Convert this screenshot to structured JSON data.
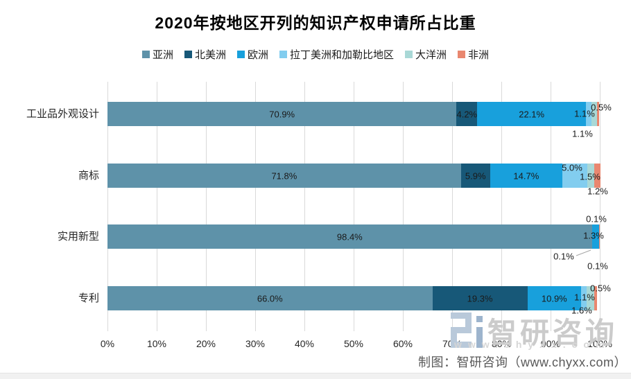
{
  "page": {
    "credit": "制图：智研咨询（www.chyxx.com）",
    "watermark": {
      "brand": "智研咨询",
      "url": "www.chyxx.com",
      "logo_icon": "zhiyan-2i-logo"
    }
  },
  "chart_data": {
    "type": "bar",
    "variant": "horizontal-stacked",
    "title": "2020年按地区开列的知识产权申请所占比重",
    "categories": [
      "工业品外观设计",
      "商标",
      "实用新型",
      "专利"
    ],
    "series": [
      {
        "key": "asia",
        "name": "亚洲",
        "color": "#5E92A9",
        "values": [
          70.9,
          71.8,
          98.4,
          66.0
        ]
      },
      {
        "key": "north-america",
        "name": "北美洲",
        "color": "#175878",
        "values": [
          4.2,
          5.9,
          0.1,
          19.3
        ]
      },
      {
        "key": "europe",
        "name": "欧洲",
        "color": "#18A0DC",
        "values": [
          22.1,
          14.7,
          1.3,
          10.9
        ]
      },
      {
        "key": "latin-america-caribbean",
        "name": "拉丁美洲和加勒比地区",
        "color": "#82CDEF",
        "values": [
          1.1,
          5.0,
          0.1,
          1.1
        ]
      },
      {
        "key": "oceania",
        "name": "大洋洲",
        "color": "#A9D8D6",
        "values": [
          1.1,
          1.5,
          0.0,
          1.6
        ]
      },
      {
        "key": "africa",
        "name": "非洲",
        "color": "#E9876F",
        "values": [
          0.5,
          1.2,
          0.1,
          0.5
        ]
      }
    ],
    "x_ticks": [
      "0%",
      "10%",
      "20%",
      "30%",
      "40%",
      "50%",
      "60%",
      "70%",
      "80%",
      "90%",
      "100%"
    ],
    "xlim": [
      0,
      100
    ],
    "grid": true,
    "legend_position": "top",
    "value_suffix": "%"
  }
}
